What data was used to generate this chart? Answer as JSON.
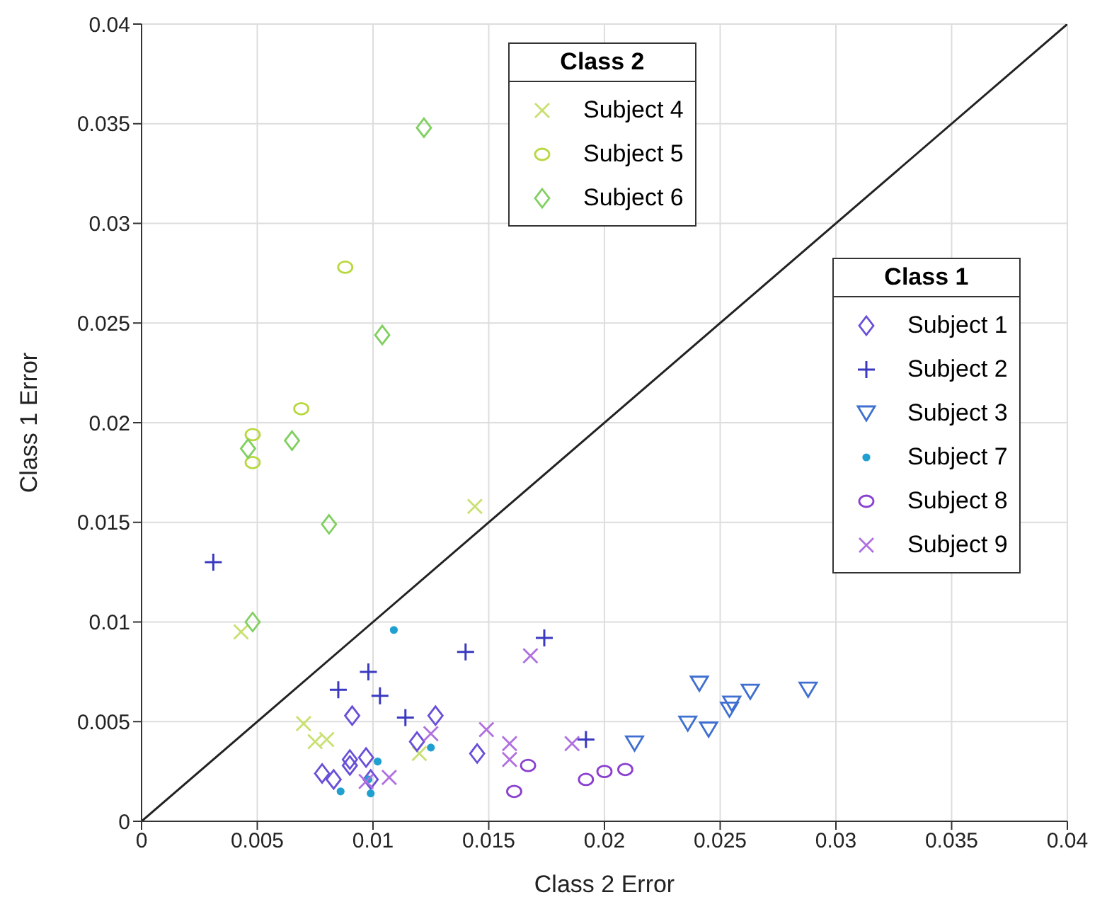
{
  "chart_data": {
    "type": "scatter",
    "xlabel": "Class 2 Error",
    "ylabel": "Class 1 Error",
    "xlim": [
      0,
      0.04
    ],
    "ylim": [
      0,
      0.04
    ],
    "xticks": [
      0,
      0.005,
      0.01,
      0.015,
      0.02,
      0.025,
      0.03,
      0.035,
      0.04
    ],
    "yticks": [
      0,
      0.005,
      0.01,
      0.015,
      0.02,
      0.025,
      0.03,
      0.035,
      0.04
    ],
    "grid": true,
    "legend": "top right",
    "annotations": [
      "Class 2",
      "Class 1"
    ],
    "series": [
      {
        "name": "Subject 4",
        "marker": "cross",
        "color": "#c8e070",
        "x": [
          0.0043,
          0.007,
          0.0075,
          0.008,
          0.012,
          0.0144
        ],
        "values": [
          0.0095,
          0.0049,
          0.004,
          0.0041,
          0.0034,
          0.0158
        ]
      },
      {
        "name": "Subject 5",
        "marker": "circle",
        "color": "#b8d840",
        "x": [
          0.0088,
          0.0069,
          0.0048,
          0.0048
        ],
        "values": [
          0.0278,
          0.0207,
          0.0194,
          0.018
        ]
      },
      {
        "name": "Subject 6",
        "marker": "diamond",
        "color": "#80d060",
        "x": [
          0.0122,
          0.0104,
          0.0065,
          0.0046,
          0.0081,
          0.0048
        ],
        "values": [
          0.0348,
          0.0244,
          0.0191,
          0.0187,
          0.0149,
          0.01
        ]
      },
      {
        "name": "Subject 1",
        "marker": "diamond",
        "color": "#6a4fd8",
        "x": [
          0.0091,
          0.0127,
          0.0119,
          0.0145,
          0.009,
          0.0097,
          0.009,
          0.0078,
          0.0083,
          0.0099
        ],
        "values": [
          0.0053,
          0.0053,
          0.004,
          0.0034,
          0.0031,
          0.0032,
          0.0028,
          0.0024,
          0.0021,
          0.0021
        ]
      },
      {
        "name": "Subject 2",
        "marker": "plus",
        "color": "#3a3ac0",
        "x": [
          0.0031,
          0.014,
          0.0098,
          0.0085,
          0.0103,
          0.0114,
          0.0174,
          0.0192
        ],
        "values": [
          0.013,
          0.0085,
          0.0075,
          0.0066,
          0.0063,
          0.0052,
          0.0092,
          0.0041
        ]
      },
      {
        "name": "Subject 3",
        "marker": "triangle-down",
        "color": "#3f6fd0",
        "x": [
          0.0213,
          0.0241,
          0.0236,
          0.0245,
          0.0254,
          0.0255,
          0.0263,
          0.0288
        ],
        "values": [
          0.0039,
          0.0069,
          0.0049,
          0.0046,
          0.0056,
          0.0059,
          0.0065,
          0.0066
        ]
      },
      {
        "name": "Subject 7",
        "marker": "point",
        "color": "#1fa0d0",
        "x": [
          0.0109,
          0.0125,
          0.0102,
          0.0098,
          0.0086,
          0.0099
        ],
        "values": [
          0.0096,
          0.0037,
          0.003,
          0.0021,
          0.0015,
          0.0014
        ]
      },
      {
        "name": "Subject 8",
        "marker": "circle",
        "color": "#8a3fd0",
        "x": [
          0.0167,
          0.0161,
          0.0192,
          0.02,
          0.0209
        ],
        "values": [
          0.0028,
          0.0015,
          0.0021,
          0.0025,
          0.0026
        ]
      },
      {
        "name": "Subject 9",
        "marker": "cross",
        "color": "#b070e0",
        "x": [
          0.0125,
          0.0107,
          0.0097,
          0.0168,
          0.0149,
          0.0159,
          0.0159,
          0.0186
        ],
        "values": [
          0.0044,
          0.0022,
          0.002,
          0.0083,
          0.0046,
          0.0039,
          0.0031,
          0.0039
        ]
      },
      {
        "type": "line",
        "color": "#222222",
        "x": [
          0,
          0.04
        ],
        "values": [
          0,
          0.04
        ]
      }
    ]
  }
}
